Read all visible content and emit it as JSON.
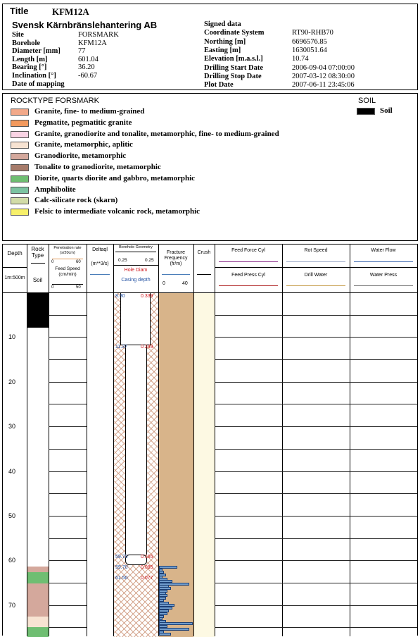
{
  "header": {
    "title_label": "Title",
    "title_value": "KFM12A",
    "company": "Svensk Kärnbränslehantering AB",
    "left_fields": [
      {
        "label": "Site",
        "value": "FORSMARK"
      },
      {
        "label": "Borehole",
        "value": "KFM12A"
      },
      {
        "label": "Diameter [mm]",
        "value": "77"
      },
      {
        "label": "Length [m]",
        "value": "601.04"
      },
      {
        "label": "Bearing [°]",
        "value": "36.20"
      },
      {
        "label": "Inclination [°]",
        "value": "-60.67"
      },
      {
        "label": "Date of mapping",
        "value": ""
      }
    ],
    "right_fields": [
      {
        "label": "Signed data",
        "value": ""
      },
      {
        "label": "Coordinate System",
        "value": "RT90-RHB70"
      },
      {
        "label": "Northing [m]",
        "value": "6696576.85"
      },
      {
        "label": "Easting [m]",
        "value": "1630051.64"
      },
      {
        "label": "Elevation [m.a.s.l.]",
        "value": "10.74"
      },
      {
        "label": "Drilling Start Date",
        "value": "2006-09-04 07:00:00"
      },
      {
        "label": "Drilling Stop Date",
        "value": "2007-03-12 08:30:00"
      },
      {
        "label": "Plot Date",
        "value": "2007-06-11 23:45:06"
      }
    ]
  },
  "legend": {
    "rocktype_title": "ROCKTYPE FORSMARK",
    "soil_title": "SOIL",
    "soil_item": {
      "label": "Soil",
      "color": "#000000"
    },
    "items": [
      {
        "label": "Granite, fine- to medium-grained",
        "color": "#F2A98A"
      },
      {
        "label": "Pegmatite, pegmatitic granite",
        "color": "#F39A5E"
      },
      {
        "label": "Granite, granodiorite and tonalite, metamorphic, fine- to medium-grained",
        "color": "#F9D3E4"
      },
      {
        "label": "Granite, metamorphic, aplitic",
        "color": "#F7E3D2"
      },
      {
        "label": "Granodiorite, metamorphic",
        "color": "#D4A89C"
      },
      {
        "label": "Tonalite to granodiorite, metamorphic",
        "color": "#A67B6A"
      },
      {
        "label": "Diorite, quarts diorite and gabbro, metamorphic",
        "color": "#6FBE72"
      },
      {
        "label": "Amphibolite",
        "color": "#7CC3A1"
      },
      {
        "label": "Calc-silicate rock (skarn)",
        "color": "#D2DCA8"
      },
      {
        "label": "Felsic to intermediate volcanic rock, metamorphic",
        "color": "#F7F06A"
      }
    ]
  },
  "columns": {
    "depth": {
      "title": "Depth",
      "scale": "1m:500m"
    },
    "rocktype": {
      "title": "Rock Type",
      "sub": "Soil"
    },
    "penetration": {
      "title": "Penetration rate (s/20cm)",
      "min": "0",
      "max": "60",
      "sub_title": "Feed Speed (cm/min)",
      "sub_min": "0",
      "sub_max": "50"
    },
    "deltaq": {
      "title": "Deltaql",
      "unit": "(m**3/s)"
    },
    "geometry": {
      "title": "Borehole Geometry",
      "left": "0.25",
      "right": "0.25",
      "hole_diam": "Hole Diam",
      "casing": "Casing depth"
    },
    "fracture": {
      "title": "Fracture Frequency (fr/m)",
      "min": "0",
      "max": "40"
    },
    "crush": {
      "title": "Crush"
    },
    "feed_force": {
      "title": "Feed Force Cyl",
      "sub": "Feed Press Cyl"
    },
    "rot_speed": {
      "title": "Rot Speed",
      "sub": "Drill Water"
    },
    "water_flow": {
      "title": "Water Flow",
      "sub": "Water Press"
    }
  },
  "colors": {
    "fracture_fill": "#D8B48A",
    "bars": "#6F9BCB",
    "crush_fill": "#FDF9E3",
    "soil": "#000000",
    "casing_blue": "#1F4EA0",
    "hole_red": "#D0161C"
  },
  "depth_axis": {
    "min": 0,
    "max": 77,
    "ticks": [
      10,
      20,
      30,
      40,
      50,
      60,
      70
    ]
  },
  "rock_intervals": [
    {
      "from": 0,
      "to": 7.7,
      "type": "Soil",
      "color": "#000000"
    },
    {
      "from": 7.7,
      "to": 61.2,
      "type": "",
      "color": "#FFFFFF"
    },
    {
      "from": 61.2,
      "to": 62.5,
      "type": "Granodiorite, metamorphic",
      "color": "#D4A89C"
    },
    {
      "from": 62.5,
      "to": 65.0,
      "type": "Diorite, quarts diorite and gabbro, metamorphic",
      "color": "#6FBE72"
    },
    {
      "from": 65.0,
      "to": 72.5,
      "type": "Granodiorite, metamorphic",
      "color": "#D4A89C"
    },
    {
      "from": 72.5,
      "to": 74.8,
      "type": "Granite, metamorphic, aplitic",
      "color": "#F7E3D2"
    },
    {
      "from": 74.8,
      "to": 77,
      "type": "Diorite, quarts diorite and gabbro, metamorphic",
      "color": "#6FBE72"
    }
  ],
  "geometry_labels": [
    {
      "depth": 0.3,
      "left": "8.30",
      "right": "0.339"
    },
    {
      "depth": 11.7,
      "left": "11.37",
      "right": "0.249"
    },
    {
      "depth": 58.7,
      "left": "59.70",
      "right": "0.165"
    },
    {
      "depth": 61.1,
      "left": "59.70",
      "right": "0.085"
    },
    {
      "depth": 63.5,
      "left": "61.50",
      "right": "0.077"
    }
  ],
  "fracture_bars": [
    {
      "depth": 61.2,
      "value": 11
    },
    {
      "depth": 61.9,
      "value": 2
    },
    {
      "depth": 62.4,
      "value": 3
    },
    {
      "depth": 62.9,
      "value": 4
    },
    {
      "depth": 63.4,
      "value": 2
    },
    {
      "depth": 63.9,
      "value": 5
    },
    {
      "depth": 64.4,
      "value": 8
    },
    {
      "depth": 65.0,
      "value": 18
    },
    {
      "depth": 65.5,
      "value": 6
    },
    {
      "depth": 66.0,
      "value": 7
    },
    {
      "depth": 66.6,
      "value": 5
    },
    {
      "depth": 67.1,
      "value": 4
    },
    {
      "depth": 67.6,
      "value": 5
    },
    {
      "depth": 68.2,
      "value": 4
    },
    {
      "depth": 68.7,
      "value": 3
    },
    {
      "depth": 69.3,
      "value": 6
    },
    {
      "depth": 69.8,
      "value": 9
    },
    {
      "depth": 70.4,
      "value": 8
    },
    {
      "depth": 71.0,
      "value": 6
    },
    {
      "depth": 71.6,
      "value": 5
    },
    {
      "depth": 72.2,
      "value": 3
    },
    {
      "depth": 72.8,
      "value": 2
    },
    {
      "depth": 73.4,
      "value": 4
    },
    {
      "depth": 73.9,
      "value": 20
    },
    {
      "depth": 74.5,
      "value": 5
    },
    {
      "depth": 75.1,
      "value": 18
    },
    {
      "depth": 75.7,
      "value": 3
    },
    {
      "depth": 76.2,
      "value": 7
    }
  ]
}
